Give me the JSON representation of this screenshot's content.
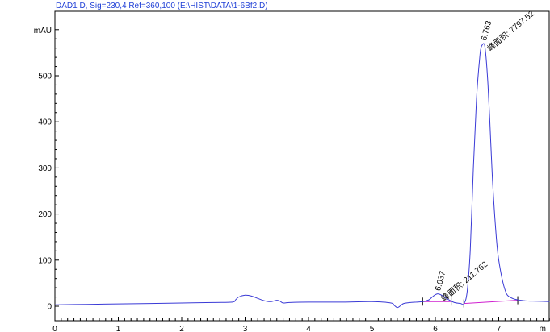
{
  "chart_data": {
    "type": "line",
    "title": "DAD1 D, Sig=230,4 Ref=360,100 (E:\\HIST\\DATA\\1-6Bf2.D)",
    "ylabel": "mAU",
    "xlabel": "",
    "x_unit": "m",
    "xlim": [
      0,
      7.8
    ],
    "ylim": [
      -40,
      620
    ],
    "xticks": [
      0,
      1,
      2,
      3,
      4,
      5,
      6,
      7
    ],
    "yticks": [
      0,
      100,
      200,
      300,
      400,
      500
    ],
    "grid": false,
    "colors": {
      "signal": "#3a3ad6",
      "baseline": "#d020d0",
      "frame": "#000000",
      "title": "#1f3fd6"
    },
    "series": [
      {
        "x": [
          0,
          0.5,
          1,
          1.5,
          2,
          2.5,
          2.8,
          2.85,
          2.9,
          3,
          3.1,
          3.2,
          3.3,
          3.4,
          3.5,
          3.55,
          3.6,
          3.7,
          4,
          4.5,
          5,
          5.3,
          5.35,
          5.4,
          5.45,
          5.5,
          5.6,
          5.7,
          5.8,
          5.9,
          5.95,
          6,
          6.04,
          6.1,
          6.2,
          6.3,
          6.4,
          6.45,
          6.5,
          6.55,
          6.6,
          6.65,
          6.7,
          6.72,
          6.74,
          6.763,
          6.78,
          6.8,
          6.83,
          6.86,
          6.9,
          6.95,
          7,
          7.1,
          7.2,
          7.4,
          7.6,
          7.8
        ],
        "values": [
          3,
          4,
          5,
          6,
          7,
          8,
          9,
          14,
          20,
          24,
          22,
          17,
          12,
          10,
          13,
          11,
          7,
          8,
          9,
          9,
          10,
          7,
          2,
          -3,
          1,
          6,
          8,
          9,
          10,
          14,
          20,
          25,
          27,
          24,
          15,
          8,
          6,
          5,
          30,
          120,
          300,
          450,
          540,
          560,
          567,
          570,
          565,
          540,
          480,
          400,
          280,
          170,
          100,
          35,
          18,
          12,
          11,
          10
        ]
      }
    ],
    "baselines": [
      {
        "x": [
          5.8,
          6.25
        ],
        "values": [
          10,
          10
        ]
      },
      {
        "x": [
          6.45,
          7.3
        ],
        "values": [
          6,
          13
        ]
      }
    ],
    "peaks": [
      {
        "x": 6.037,
        "y": 27,
        "label": "6.037",
        "area_label": "峰面积: 211.762"
      },
      {
        "x": 6.763,
        "y": 570,
        "label": "6.763",
        "area_label": "峰面积: 7797.52"
      }
    ]
  }
}
